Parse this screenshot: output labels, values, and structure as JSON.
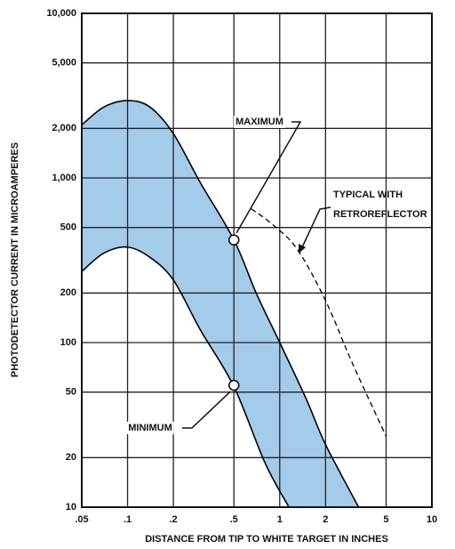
{
  "chart_data": {
    "type": "line",
    "xlabel": "DISTANCE FROM TIP TO WHITE TARGET IN INCHES",
    "ylabel": "PHOTODETECTOR CURRENT IN MICROAMPERES",
    "xscale": "log",
    "yscale": "log",
    "xlim": [
      0.05,
      10
    ],
    "ylim": [
      10,
      10000
    ],
    "xticks": [
      {
        "value": 0.05,
        "label": ".05"
      },
      {
        "value": 0.1,
        "label": ".1"
      },
      {
        "value": 0.2,
        "label": ".2"
      },
      {
        "value": 0.5,
        "label": ".5"
      },
      1,
      2,
      5,
      10
    ],
    "yticks": [
      10,
      20,
      50,
      100,
      200,
      500,
      {
        "value": 1000,
        "label": "1,000"
      },
      {
        "value": 2000,
        "label": "2,000"
      },
      {
        "value": 5000,
        "label": "5,000"
      },
      {
        "value": 10000,
        "label": "10,000"
      }
    ],
    "grid": true,
    "band_color": "#a3cbea",
    "series": [
      {
        "color": "#000000",
        "x": [
          0.05,
          0.07,
          0.1,
          0.14,
          0.2,
          0.3,
          0.5,
          0.7,
          1,
          1.5,
          2,
          3.3
        ],
        "values": [
          2100,
          2700,
          2950,
          2700,
          1860,
          940,
          420,
          200,
          100,
          45,
          24,
          10
        ]
      },
      {
        "color": "#000000",
        "x": [
          0.05,
          0.07,
          0.1,
          0.14,
          0.2,
          0.3,
          0.5,
          0.8,
          1.15
        ],
        "values": [
          270,
          350,
          380,
          330,
          240,
          120,
          54,
          18.6,
          10
        ]
      },
      {
        "color": "#000000",
        "dashed": true,
        "x": [
          0.65,
          0.9,
          1.3,
          2,
          3,
          5
        ],
        "values": [
          650,
          520,
          370,
          180,
          75,
          27
        ]
      }
    ],
    "points": [
      {
        "x": 0.5,
        "y": 420
      },
      {
        "x": 0.5,
        "y": 55
      }
    ],
    "annotations": [
      "MAXIMUM",
      "MINIMUM",
      "TYPICAL WITH",
      "RETROREFLECTOR"
    ]
  }
}
